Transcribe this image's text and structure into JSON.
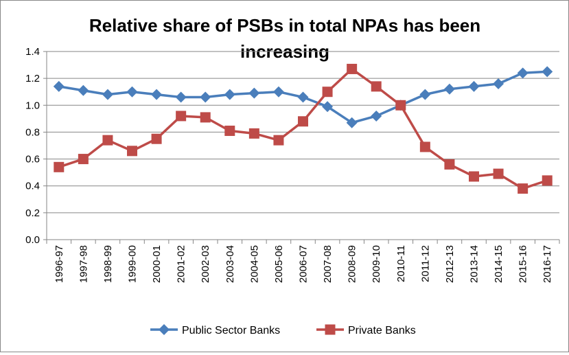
{
  "chart_data": {
    "type": "line",
    "title_lines": [
      "Relative share of PSBs in total NPAs has been",
      "increasing"
    ],
    "xlabel": "",
    "ylabel": "",
    "categories": [
      "1996-97",
      "1997-98",
      "1998-99",
      "1999-00",
      "2000-01",
      "2001-02",
      "2002-03",
      "2003-04",
      "2004-05",
      "2005-06",
      "2006-07",
      "2007-08",
      "2008-09",
      "2009-10",
      "2010-11",
      "2011-12",
      "2012-13",
      "2013-14",
      "2014-15",
      "2015-16",
      "2016-17"
    ],
    "ylim": [
      0,
      1.4
    ],
    "yticks": [
      "0.0",
      "0.2",
      "0.4",
      "0.6",
      "0.8",
      "1.0",
      "1.2",
      "1.4"
    ],
    "grid": true,
    "legend_position": "bottom",
    "series": [
      {
        "name": "Public Sector Banks",
        "color": "#4a7ebb",
        "marker": "diamond",
        "values": [
          1.14,
          1.11,
          1.08,
          1.1,
          1.08,
          1.06,
          1.06,
          1.08,
          1.09,
          1.1,
          1.06,
          0.99,
          0.87,
          0.92,
          1.0,
          1.08,
          1.12,
          1.14,
          1.16,
          1.24,
          1.25
        ]
      },
      {
        "name": "Private Banks",
        "color": "#be4b48",
        "marker": "square",
        "values": [
          0.54,
          0.6,
          0.74,
          0.66,
          0.75,
          0.92,
          0.91,
          0.81,
          0.79,
          0.74,
          0.88,
          1.1,
          1.27,
          1.14,
          1.0,
          0.69,
          0.56,
          0.47,
          0.49,
          0.38,
          0.44
        ]
      }
    ]
  }
}
